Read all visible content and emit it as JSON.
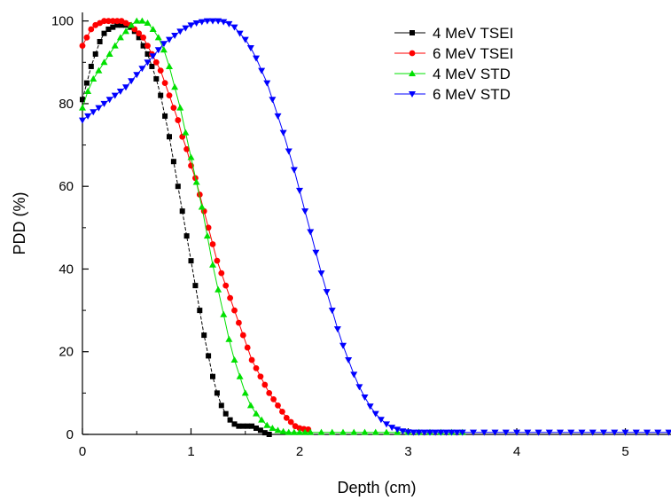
{
  "chart_data": {
    "type": "line",
    "xlabel": "Depth (cm)",
    "ylabel": "PDD (%)",
    "xlim": [
      0,
      5.45
    ],
    "ylim": [
      0,
      101
    ],
    "x_ticks": [
      0,
      1,
      2,
      3,
      4,
      5
    ],
    "y_ticks": [
      0,
      20,
      40,
      60,
      80,
      100
    ],
    "legend_position": "top-right",
    "grid": false,
    "series": [
      {
        "name": "4 MeV TSEI",
        "color": "#000000",
        "marker": "square",
        "x": [
          0.0,
          0.04,
          0.08,
          0.12,
          0.16,
          0.2,
          0.24,
          0.28,
          0.32,
          0.36,
          0.4,
          0.44,
          0.48,
          0.52,
          0.56,
          0.6,
          0.64,
          0.68,
          0.72,
          0.76,
          0.8,
          0.84,
          0.88,
          0.92,
          0.96,
          1.0,
          1.04,
          1.08,
          1.12,
          1.16,
          1.2,
          1.24,
          1.28,
          1.32,
          1.36,
          1.4,
          1.44,
          1.48,
          1.52,
          1.56,
          1.6,
          1.64,
          1.68,
          1.72
        ],
        "y": [
          81,
          85,
          89,
          92,
          95,
          97,
          98,
          98.5,
          99,
          99,
          99,
          98.5,
          97.5,
          96,
          94,
          92,
          89,
          86,
          82,
          77,
          72,
          66,
          60,
          54,
          48,
          42,
          36,
          30,
          24,
          19,
          14,
          10,
          7,
          5,
          3.5,
          2.5,
          2,
          2,
          2,
          2,
          1.5,
          1,
          0.4,
          0
        ]
      },
      {
        "name": "6 MeV TSEI",
        "color": "#ff0000",
        "marker": "circle",
        "x": [
          0.0,
          0.04,
          0.08,
          0.12,
          0.16,
          0.2,
          0.24,
          0.28,
          0.32,
          0.36,
          0.4,
          0.44,
          0.48,
          0.52,
          0.56,
          0.6,
          0.64,
          0.68,
          0.72,
          0.76,
          0.8,
          0.84,
          0.88,
          0.92,
          0.96,
          1.0,
          1.04,
          1.08,
          1.12,
          1.16,
          1.2,
          1.24,
          1.28,
          1.32,
          1.36,
          1.4,
          1.44,
          1.48,
          1.52,
          1.56,
          1.6,
          1.64,
          1.68,
          1.72,
          1.76,
          1.8,
          1.84,
          1.88,
          1.92,
          1.96,
          2.0,
          2.04,
          2.08
        ],
        "y": [
          94,
          96,
          98,
          99,
          99.5,
          100,
          100,
          100,
          100,
          100,
          99.5,
          99,
          98,
          97,
          96,
          94,
          92,
          90,
          88,
          85,
          82,
          79,
          76,
          72,
          69,
          65,
          62,
          58,
          54,
          50,
          46,
          42,
          39,
          36,
          33,
          30,
          27,
          24,
          21,
          18,
          16,
          14,
          12,
          10,
          8.5,
          7,
          5.5,
          4,
          3,
          2,
          1.5,
          1.3,
          1.2
        ]
      },
      {
        "name": "4 MeV STD",
        "color": "#00e000",
        "marker": "triangle-up",
        "x": [
          0.0,
          0.05,
          0.1,
          0.15,
          0.2,
          0.25,
          0.3,
          0.35,
          0.4,
          0.45,
          0.5,
          0.55,
          0.6,
          0.65,
          0.7,
          0.75,
          0.8,
          0.85,
          0.9,
          0.95,
          1.0,
          1.05,
          1.1,
          1.15,
          1.2,
          1.25,
          1.3,
          1.35,
          1.4,
          1.45,
          1.5,
          1.55,
          1.6,
          1.65,
          1.7,
          1.75,
          1.8,
          1.85,
          1.9,
          1.95,
          2.0,
          2.05,
          2.1,
          2.2,
          2.3,
          2.4,
          2.5,
          2.6,
          2.7,
          2.8,
          2.9,
          3.0,
          3.1,
          3.2,
          3.3,
          3.4,
          3.5
        ],
        "y": [
          79,
          83,
          86,
          88,
          90,
          92,
          94,
          96,
          97.5,
          99,
          100,
          100,
          99.5,
          98,
          96,
          93,
          89,
          84,
          79,
          73,
          67,
          61,
          55,
          48,
          41,
          35,
          29,
          23,
          18,
          14,
          10,
          7,
          5,
          3.5,
          2.2,
          1.5,
          1,
          0.7,
          0.5,
          0.5,
          0.5,
          0.5,
          0.5,
          0.5,
          0.5,
          0.5,
          0.5,
          0.5,
          0.5,
          0.5,
          0.5,
          0.5,
          0.5,
          0.5,
          0.5,
          0.5,
          0.5
        ]
      },
      {
        "name": "6 MeV STD",
        "color": "#0000ff",
        "marker": "triangle-down",
        "x": [
          0.0,
          0.05,
          0.1,
          0.15,
          0.2,
          0.25,
          0.3,
          0.35,
          0.4,
          0.45,
          0.5,
          0.55,
          0.6,
          0.65,
          0.7,
          0.75,
          0.8,
          0.85,
          0.9,
          0.95,
          1.0,
          1.05,
          1.1,
          1.15,
          1.2,
          1.25,
          1.3,
          1.35,
          1.4,
          1.45,
          1.5,
          1.55,
          1.6,
          1.65,
          1.7,
          1.75,
          1.8,
          1.85,
          1.9,
          1.95,
          2.0,
          2.05,
          2.1,
          2.15,
          2.2,
          2.25,
          2.3,
          2.35,
          2.4,
          2.45,
          2.5,
          2.55,
          2.6,
          2.65,
          2.7,
          2.75,
          2.8,
          2.85,
          2.9,
          2.95,
          3.0,
          3.05,
          3.1,
          3.15,
          3.2,
          3.25,
          3.3,
          3.35,
          3.4,
          3.45,
          3.5,
          3.6,
          3.7,
          3.8,
          3.9,
          4.0,
          4.1,
          4.2,
          4.3,
          4.4,
          4.5,
          4.6,
          4.7,
          4.8,
          4.9,
          5.0,
          5.1,
          5.2,
          5.3,
          5.4
        ],
        "y": [
          76,
          77,
          78,
          79,
          80,
          81,
          82,
          83,
          84,
          85.5,
          87,
          88.5,
          90,
          91.5,
          93,
          94.5,
          95.5,
          96.5,
          97.5,
          98.3,
          99,
          99.5,
          99.8,
          100,
          100,
          100,
          99.8,
          99.3,
          98.5,
          97,
          95.5,
          93.5,
          91,
          88,
          85,
          81,
          77,
          73,
          68.5,
          64,
          59,
          54,
          49,
          44,
          39,
          34.5,
          30,
          25.5,
          21.5,
          18,
          14.5,
          11.5,
          9,
          6.8,
          5,
          3.6,
          2.5,
          1.7,
          1.2,
          0.8,
          0.6,
          0.5,
          0.5,
          0.5,
          0.5,
          0.5,
          0.5,
          0.5,
          0.5,
          0.5,
          0.5,
          0.5,
          0.5,
          0.5,
          0.5,
          0.5,
          0.5,
          0.5,
          0.5,
          0.5,
          0.5,
          0.5,
          0.5,
          0.5,
          0.5,
          0.5,
          0.5,
          0.5,
          0.5,
          0.5
        ]
      }
    ]
  }
}
